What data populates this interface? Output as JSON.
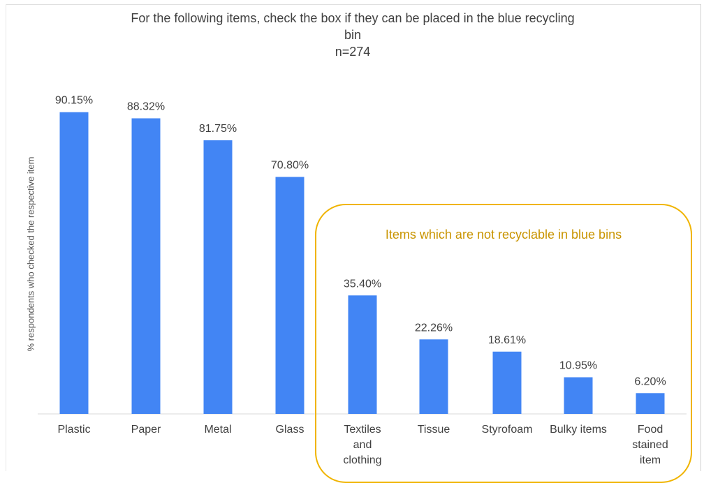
{
  "chart_data": {
    "type": "bar",
    "title_lines": [
      "For the following  items, check the box if they can be placed in the blue recycling",
      "bin",
      "n=274"
    ],
    "ylabel": "% respondents who checked the respective item",
    "xlabel": "",
    "ylim": [
      0,
      100
    ],
    "grid": false,
    "legend": "none",
    "bar_color": "#4285f4",
    "categories": [
      [
        "Plastic"
      ],
      [
        "Paper"
      ],
      [
        "Metal"
      ],
      [
        "Glass"
      ],
      [
        "Textiles",
        "and",
        "clothing"
      ],
      [
        "Tissue"
      ],
      [
        "Styrofoam"
      ],
      [
        "Bulky items"
      ],
      [
        "Food",
        "stained",
        "item"
      ]
    ],
    "values": [
      90.15,
      88.32,
      81.75,
      70.8,
      35.4,
      22.26,
      18.61,
      10.95,
      6.2
    ],
    "data_labels": [
      "90.15%",
      "88.32%",
      "81.75%",
      "70.80%",
      "35.40%",
      "22.26%",
      "18.61%",
      "10.95%",
      "6.20%"
    ],
    "annotation": {
      "text": "Items which are not recyclable in blue bins",
      "color": "#f0b400",
      "text_color": "#c99400"
    }
  }
}
